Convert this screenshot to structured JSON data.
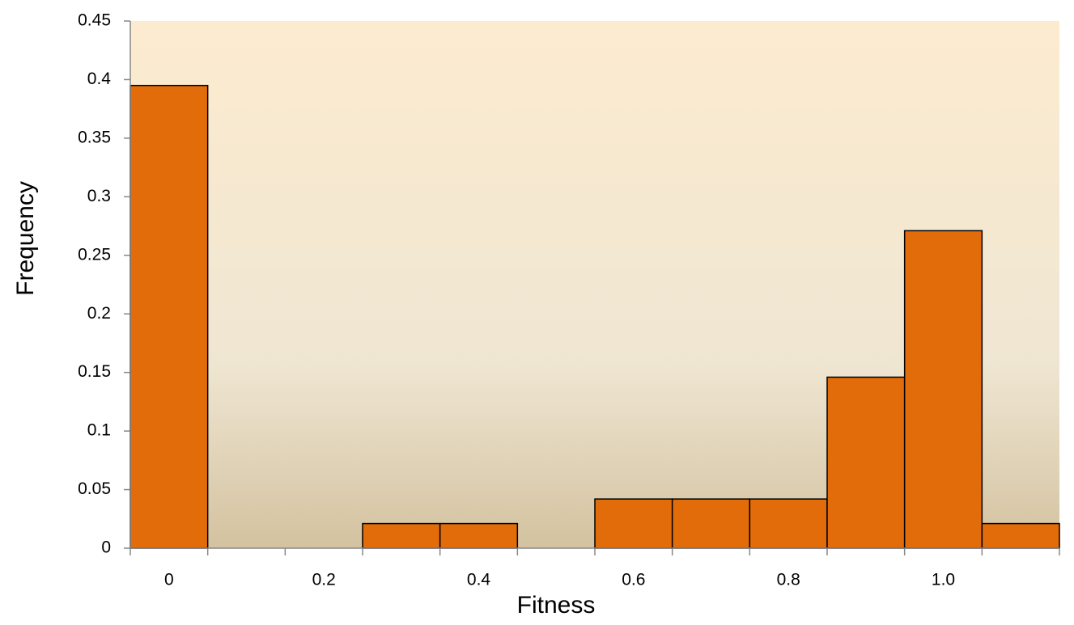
{
  "chart_data": {
    "type": "bar",
    "x_label": "Fitness",
    "y_label": "Frequency",
    "categories": [
      "0",
      null,
      "0.2",
      null,
      "0.4",
      null,
      "0.6",
      null,
      "0.8",
      null,
      "1.0",
      null
    ],
    "values": [
      0.395,
      0,
      0,
      0.021,
      0.021,
      0,
      0.042,
      0.042,
      0.042,
      0.146,
      0.271,
      0.021
    ],
    "color": "#e36c0a",
    "ylim": [
      0,
      0.45
    ],
    "yticks": [
      0,
      0.05,
      0.1,
      0.15,
      0.2,
      0.25,
      0.3,
      0.35,
      0.4,
      0.45
    ],
    "grid": false
  }
}
